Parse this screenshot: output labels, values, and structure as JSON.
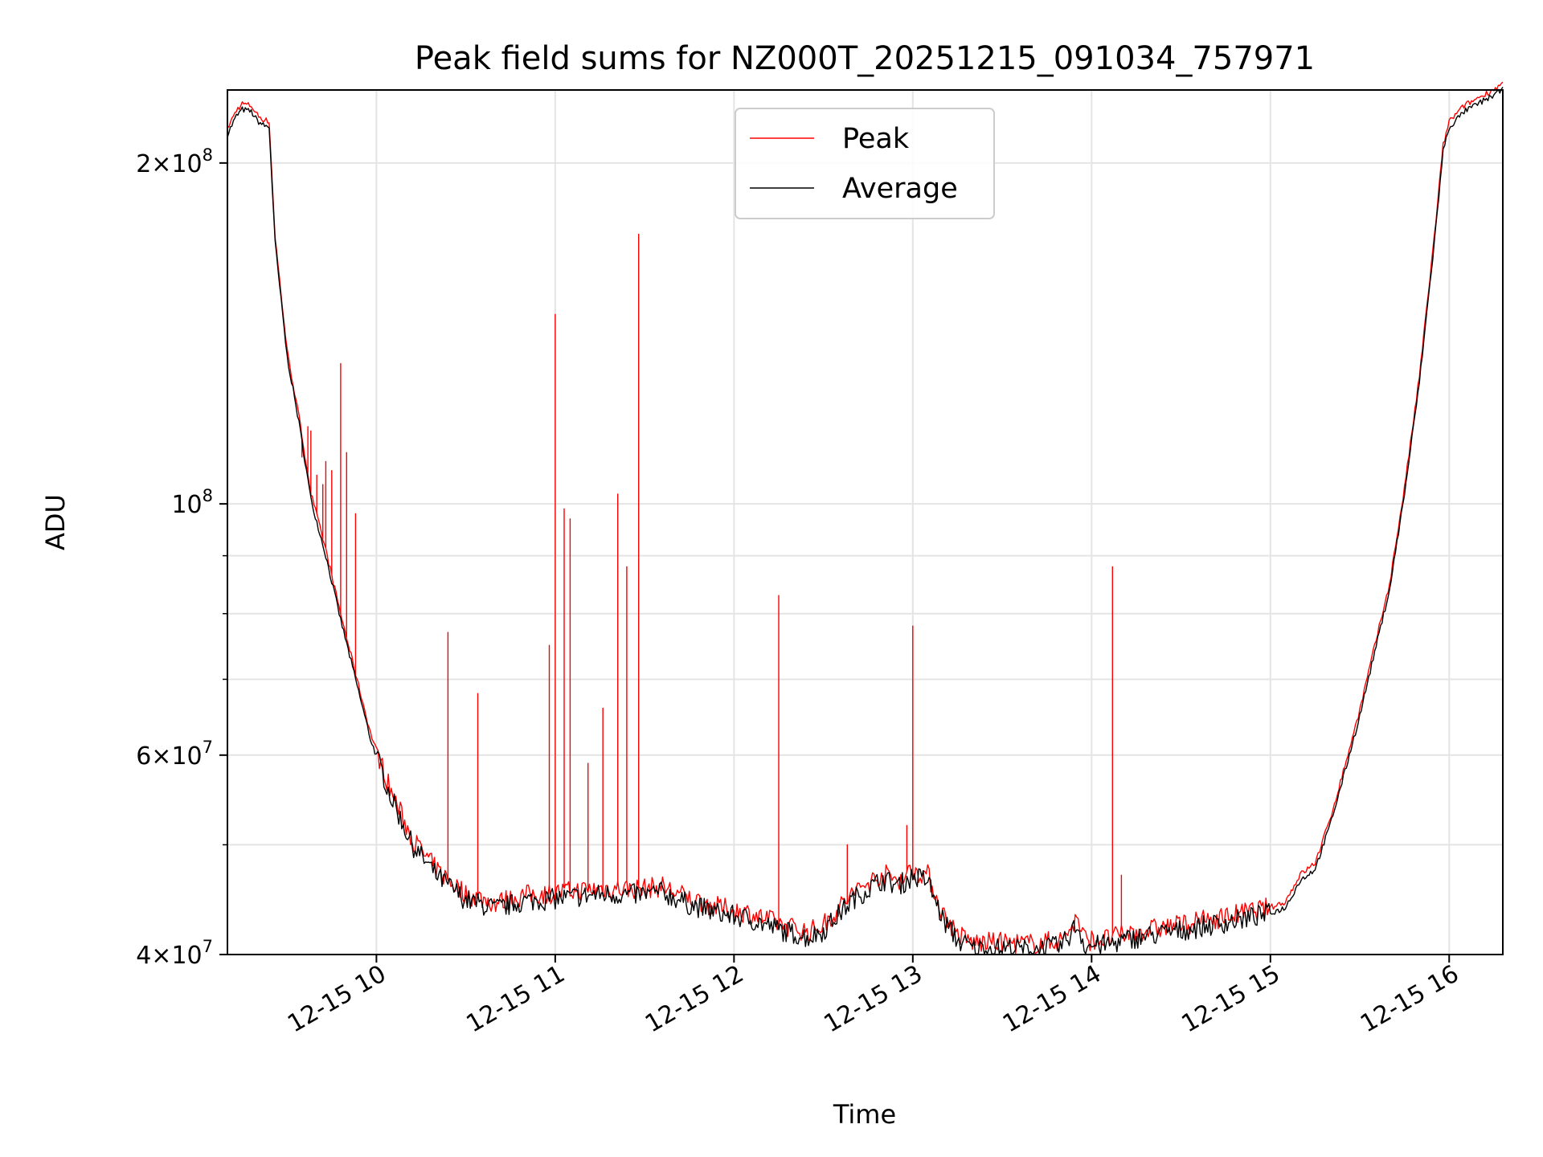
{
  "chart_data": {
    "type": "line",
    "title": "Peak field sums for NZ000T_20251215_091034_757971",
    "xlabel": "Time",
    "ylabel": "ADU",
    "y_scale": "log",
    "xlim": [
      "2025-12-15 09:10",
      "2025-12-15 16:18"
    ],
    "ylim": [
      40000000,
      232000000
    ],
    "grid": true,
    "legend_position": "upper center",
    "x_ticks": [
      {
        "t": "2025-12-15 10:00",
        "label": "12-15 10"
      },
      {
        "t": "2025-12-15 11:00",
        "label": "12-15 11"
      },
      {
        "t": "2025-12-15 12:00",
        "label": "12-15 12"
      },
      {
        "t": "2025-12-15 13:00",
        "label": "12-15 13"
      },
      {
        "t": "2025-12-15 14:00",
        "label": "12-15 14"
      },
      {
        "t": "2025-12-15 15:00",
        "label": "12-15 15"
      },
      {
        "t": "2025-12-15 16:00",
        "label": "12-15 16"
      }
    ],
    "y_major_ticks": [
      {
        "v": 40000000,
        "mantissa": "4",
        "exp": "7"
      },
      {
        "v": 60000000,
        "mantissa": "6",
        "exp": "7"
      },
      {
        "v": 100000000,
        "mantissa": "",
        "exp": "8"
      },
      {
        "v": 200000000,
        "mantissa": "2",
        "exp": "8"
      }
    ],
    "y_minor_ticks": [
      50000000,
      70000000,
      80000000,
      90000000
    ],
    "series": [
      {
        "name": "Average",
        "color": "#000000",
        "points": [
          [
            "09:10",
            212000000
          ],
          [
            "09:13",
            220000000
          ],
          [
            "09:15",
            223000000
          ],
          [
            "09:18",
            222000000
          ],
          [
            "09:20",
            218000000
          ],
          [
            "09:22",
            216000000
          ],
          [
            "09:24",
            215000000
          ],
          [
            "09:26",
            170000000
          ],
          [
            "09:30",
            135000000
          ],
          [
            "09:34",
            118000000
          ],
          [
            "09:38",
            101000000
          ],
          [
            "09:43",
            90000000
          ],
          [
            "09:48",
            79000000
          ],
          [
            "09:53",
            70000000
          ],
          [
            "09:58",
            62000000
          ],
          [
            "10:05",
            55000000
          ],
          [
            "10:12",
            50000000
          ],
          [
            "10:20",
            47000000
          ],
          [
            "10:30",
            44700000
          ],
          [
            "10:40",
            43900000
          ],
          [
            "10:50",
            44600000
          ],
          [
            "11:00",
            44800000
          ],
          [
            "11:15",
            45200000
          ],
          [
            "11:30",
            45200000
          ],
          [
            "11:36",
            45400000
          ],
          [
            "11:45",
            44300000
          ],
          [
            "11:55",
            43500000
          ],
          [
            "12:05",
            43000000
          ],
          [
            "12:15",
            42100000
          ],
          [
            "12:25",
            41400000
          ],
          [
            "12:30",
            42000000
          ],
          [
            "12:40",
            44800000
          ],
          [
            "12:50",
            46600000
          ],
          [
            "12:55",
            46000000
          ],
          [
            "13:00",
            46900000
          ],
          [
            "13:05",
            46500000
          ],
          [
            "13:10",
            43000000
          ],
          [
            "13:15",
            41200000
          ],
          [
            "13:20",
            40500000
          ],
          [
            "13:30",
            40500000
          ],
          [
            "13:40",
            40400000
          ],
          [
            "13:50",
            40700000
          ],
          [
            "13:55",
            42500000
          ],
          [
            "13:58",
            40700000
          ],
          [
            "14:05",
            40800000
          ],
          [
            "14:15",
            41400000
          ],
          [
            "14:30",
            42000000
          ],
          [
            "14:45",
            42700000
          ],
          [
            "15:00",
            43500000
          ],
          [
            "15:05",
            44000000
          ],
          [
            "15:10",
            46500000
          ],
          [
            "15:15",
            47600000
          ],
          [
            "15:20",
            52000000
          ],
          [
            "15:25",
            58000000
          ],
          [
            "15:30",
            65000000
          ],
          [
            "15:35",
            74000000
          ],
          [
            "15:40",
            84000000
          ],
          [
            "15:45",
            102000000
          ],
          [
            "15:50",
            128000000
          ],
          [
            "15:55",
            170000000
          ],
          [
            "15:58",
            205000000
          ],
          [
            "16:00",
            215000000
          ],
          [
            "16:05",
            222000000
          ],
          [
            "16:18",
            232000000
          ]
        ]
      },
      {
        "name": "Peak",
        "color": "#ff0000",
        "spikes": [
          [
            "09:35",
            110000000
          ],
          [
            "09:37",
            117000000
          ],
          [
            "09:38",
            116000000
          ],
          [
            "09:40",
            106000000
          ],
          [
            "09:42",
            104000000
          ],
          [
            "09:43",
            109000000
          ],
          [
            "09:45",
            107000000
          ],
          [
            "09:48",
            133000000
          ],
          [
            "09:50",
            111000000
          ],
          [
            "09:53",
            98000000
          ],
          [
            "10:24",
            77000000
          ],
          [
            "10:34",
            68000000
          ],
          [
            "10:58",
            75000000
          ],
          [
            "11:00",
            147000000
          ],
          [
            "11:03",
            99000000
          ],
          [
            "11:05",
            97000000
          ],
          [
            "11:11",
            59000000
          ],
          [
            "11:16",
            66000000
          ],
          [
            "11:21",
            102000000
          ],
          [
            "11:24",
            88000000
          ],
          [
            "11:28",
            173000000
          ],
          [
            "12:15",
            83000000
          ],
          [
            "12:38",
            50000000
          ],
          [
            "12:58",
            52000000
          ],
          [
            "13:00",
            78000000
          ],
          [
            "14:07",
            88000000
          ],
          [
            "14:10",
            47000000
          ]
        ]
      }
    ]
  }
}
